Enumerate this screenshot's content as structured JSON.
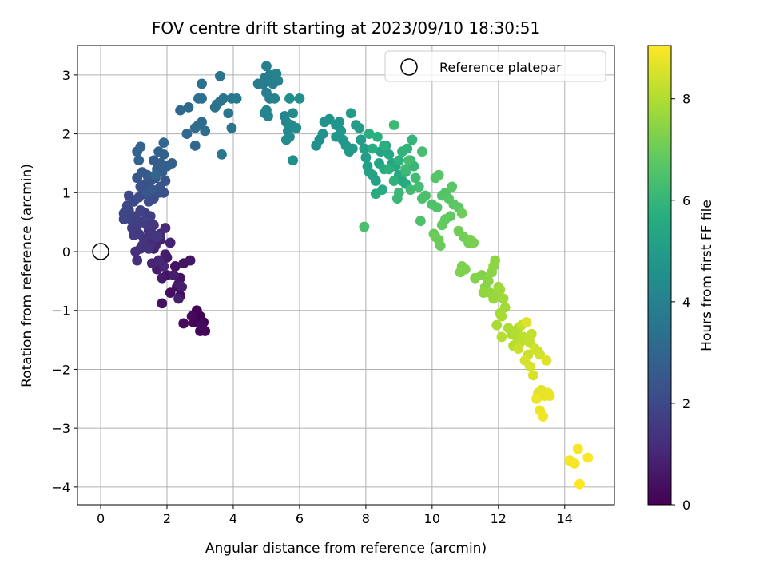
{
  "chart_data": {
    "type": "scatter",
    "title": "FOV centre drift starting at 2023/09/10 18:30:51",
    "xlabel": "Angular distance from reference (arcmin)",
    "ylabel": "Rotation from reference (arcmin)",
    "xlim": [
      -0.7,
      15.5
    ],
    "ylim": [
      -4.3,
      3.5
    ],
    "xticks": [
      0,
      2,
      4,
      6,
      8,
      10,
      12,
      14
    ],
    "yticks": [
      -4,
      -3,
      -2,
      -1,
      0,
      1,
      2,
      3
    ],
    "xtick_labels": [
      "0",
      "2",
      "4",
      "6",
      "8",
      "10",
      "12",
      "14"
    ],
    "ytick_labels": [
      "−4",
      "−3",
      "−2",
      "−1",
      "0",
      "1",
      "2",
      "3"
    ],
    "grid": true,
    "legend": {
      "placement": "upper-right",
      "entries": [
        "Reference platepar"
      ]
    },
    "reference_point": {
      "x": 0,
      "y": 0,
      "name": "Reference platepar"
    },
    "colorbar": {
      "label": "Hours from first FF file",
      "colormap": "viridis",
      "range": [
        0,
        9.05
      ],
      "ticks": [
        0,
        2,
        4,
        6,
        8
      ],
      "tick_labels": [
        "0",
        "2",
        "4",
        "6",
        "8"
      ]
    },
    "series": [
      {
        "points": [
          [
            2.9,
            -1.0
          ],
          [
            3.0,
            -1.1
          ],
          [
            3.1,
            -1.2
          ],
          [
            2.8,
            -1.2
          ],
          [
            3.0,
            -1.35
          ],
          [
            3.15,
            -1.35
          ],
          [
            2.75,
            -1.1
          ],
          [
            2.5,
            -1.22
          ],
          [
            3.05,
            -1.25
          ],
          [
            2.4,
            -0.75
          ],
          [
            2.3,
            -0.6
          ],
          [
            2.1,
            -0.7
          ],
          [
            1.85,
            -0.88
          ],
          [
            2.4,
            -0.45
          ],
          [
            2.0,
            -0.4
          ],
          [
            2.25,
            -0.25
          ],
          [
            2.5,
            -0.2
          ],
          [
            2.7,
            -0.15
          ],
          [
            2.0,
            -0.1
          ],
          [
            2.35,
            -0.55
          ],
          [
            1.85,
            -0.45
          ],
          [
            1.7,
            -0.3
          ],
          [
            1.95,
            -0.05
          ],
          [
            2.2,
            -0.4
          ],
          [
            2.45,
            -0.6
          ],
          [
            2.35,
            -0.8
          ],
          [
            1.6,
            0.05
          ],
          [
            1.8,
            0.2
          ],
          [
            2.1,
            0.15
          ],
          [
            1.55,
            -0.2
          ],
          [
            1.75,
            -0.15
          ],
          [
            1.9,
            -0.25
          ],
          [
            1.65,
            0.1
          ],
          [
            1.95,
            0.4
          ],
          [
            1.8,
            0.3
          ],
          [
            1.45,
            0.35
          ],
          [
            1.35,
            0.2
          ],
          [
            1.5,
            0.15
          ],
          [
            1.1,
            -0.15
          ],
          [
            1.05,
            0.0
          ],
          [
            1.2,
            0.05
          ],
          [
            1.25,
            0.1
          ],
          [
            1.3,
            0.22
          ],
          [
            1.45,
            0.05
          ],
          [
            1.55,
            0.3
          ],
          [
            1.6,
            0.45
          ],
          [
            1.7,
            0.25
          ],
          [
            1.4,
            0.45
          ],
          [
            1.15,
            0.3
          ],
          [
            1.0,
            0.28
          ],
          [
            0.95,
            0.4
          ],
          [
            1.1,
            0.45
          ],
          [
            1.25,
            0.5
          ],
          [
            1.5,
            0.6
          ],
          [
            1.35,
            0.65
          ],
          [
            1.2,
            0.7
          ],
          [
            1.05,
            0.6
          ],
          [
            0.9,
            0.55
          ],
          [
            0.85,
            0.7
          ],
          [
            0.7,
            0.55
          ],
          [
            0.7,
            0.65
          ],
          [
            0.8,
            0.78
          ],
          [
            0.85,
            0.95
          ],
          [
            1.0,
            0.85
          ],
          [
            1.15,
            0.92
          ],
          [
            1.3,
            0.98
          ],
          [
            1.45,
            0.85
          ],
          [
            1.6,
            0.9
          ],
          [
            1.75,
            1.0
          ],
          [
            1.9,
            1.0
          ],
          [
            1.2,
            1.1
          ],
          [
            1.35,
            1.15
          ],
          [
            1.5,
            1.2
          ],
          [
            1.65,
            1.25
          ],
          [
            1.8,
            1.1
          ],
          [
            1.95,
            1.2
          ],
          [
            1.1,
            1.25
          ],
          [
            1.4,
            1.0
          ],
          [
            1.55,
            1.05
          ],
          [
            1.25,
            1.35
          ],
          [
            1.4,
            1.3
          ],
          [
            1.7,
            1.4
          ],
          [
            1.85,
            1.35
          ],
          [
            1.6,
            1.55
          ],
          [
            1.8,
            1.5
          ],
          [
            2.0,
            1.45
          ],
          [
            2.15,
            1.5
          ],
          [
            1.9,
            1.65
          ],
          [
            1.75,
            1.7
          ],
          [
            1.15,
            1.55
          ],
          [
            1.1,
            1.7
          ],
          [
            1.2,
            1.78
          ],
          [
            1.65,
            1.3
          ],
          [
            1.9,
            1.85
          ],
          [
            2.4,
            2.4
          ],
          [
            2.6,
            2.0
          ],
          [
            2.85,
            1.8
          ],
          [
            2.65,
            2.45
          ],
          [
            2.95,
            2.15
          ],
          [
            2.85,
            2.1
          ],
          [
            3.05,
            2.2
          ],
          [
            3.15,
            2.05
          ],
          [
            2.95,
            2.6
          ],
          [
            3.05,
            2.6
          ],
          [
            3.05,
            2.85
          ],
          [
            3.45,
            2.45
          ],
          [
            3.5,
            2.5
          ],
          [
            3.6,
            2.55
          ],
          [
            3.7,
            2.6
          ],
          [
            3.6,
            2.98
          ],
          [
            3.95,
            2.1
          ],
          [
            3.85,
            2.35
          ],
          [
            3.65,
            1.65
          ],
          [
            3.95,
            2.6
          ],
          [
            4.1,
            2.6
          ],
          [
            4.75,
            2.85
          ],
          [
            4.9,
            2.85
          ],
          [
            4.95,
            2.95
          ],
          [
            5.0,
            2.7
          ],
          [
            5.1,
            2.6
          ],
          [
            5.2,
            2.85
          ],
          [
            5.1,
            3.0
          ],
          [
            5.0,
            3.15
          ],
          [
            5.35,
            2.9
          ],
          [
            5.3,
            3.02
          ],
          [
            5.25,
            2.6
          ],
          [
            5.0,
            2.4
          ],
          [
            4.95,
            2.35
          ],
          [
            5.05,
            2.3
          ],
          [
            5.55,
            2.3
          ],
          [
            5.6,
            2.2
          ],
          [
            5.65,
            2.05
          ],
          [
            5.7,
            1.95
          ],
          [
            5.6,
            1.9
          ],
          [
            5.75,
            2.15
          ],
          [
            5.9,
            2.1
          ],
          [
            5.8,
            2.35
          ],
          [
            5.7,
            2.6
          ],
          [
            6.0,
            2.6
          ],
          [
            5.8,
            1.55
          ],
          [
            6.5,
            1.8
          ],
          [
            6.6,
            1.9
          ],
          [
            6.7,
            2.0
          ],
          [
            6.75,
            2.2
          ],
          [
            6.9,
            2.25
          ],
          [
            7.1,
            2.15
          ],
          [
            7.2,
            2.2
          ],
          [
            7.25,
            2.05
          ],
          [
            7.1,
            1.95
          ],
          [
            7.3,
            1.9
          ],
          [
            7.4,
            1.8
          ],
          [
            7.5,
            1.7
          ],
          [
            7.6,
            1.75
          ],
          [
            7.55,
            2.35
          ],
          [
            7.7,
            2.15
          ],
          [
            7.8,
            2.1
          ],
          [
            7.85,
            1.9
          ],
          [
            7.95,
            1.75
          ],
          [
            8.0,
            1.6
          ],
          [
            8.05,
            1.45
          ],
          [
            8.1,
            1.35
          ],
          [
            8.2,
            1.3
          ],
          [
            8.3,
            1.2
          ],
          [
            8.4,
            1.5
          ],
          [
            8.45,
            1.7
          ],
          [
            8.6,
            1.8
          ],
          [
            8.7,
            1.65
          ],
          [
            8.8,
            1.5
          ],
          [
            8.9,
            1.45
          ],
          [
            9.0,
            1.3
          ],
          [
            9.1,
            1.2
          ],
          [
            9.2,
            1.15
          ],
          [
            8.5,
            1.05
          ],
          [
            8.55,
            1.4
          ],
          [
            8.3,
            0.98
          ],
          [
            8.2,
            1.75
          ],
          [
            8.1,
            2.0
          ],
          [
            8.35,
            1.95
          ],
          [
            8.55,
            1.8
          ],
          [
            8.7,
            1.4
          ],
          [
            8.85,
            1.2
          ],
          [
            9.0,
            1.55
          ],
          [
            9.1,
            1.7
          ],
          [
            9.25,
            1.75
          ],
          [
            9.4,
            1.9
          ],
          [
            9.35,
            1.55
          ],
          [
            9.45,
            1.45
          ],
          [
            9.2,
            1.35
          ],
          [
            9.0,
            1.0
          ],
          [
            8.95,
            0.9
          ],
          [
            8.85,
            2.15
          ],
          [
            9.2,
            1.4
          ],
          [
            9.35,
            1.05
          ],
          [
            9.5,
            1.25
          ],
          [
            9.6,
            1.1
          ],
          [
            9.3,
            1.55
          ],
          [
            9.7,
            1.7
          ],
          [
            7.95,
            0.42
          ],
          [
            9.7,
            0.9
          ],
          [
            9.8,
            0.95
          ],
          [
            9.65,
            0.52
          ],
          [
            10.0,
            0.8
          ],
          [
            10.15,
            0.75
          ],
          [
            10.3,
            0.95
          ],
          [
            10.4,
            1.0
          ],
          [
            10.1,
            1.25
          ],
          [
            10.2,
            1.3
          ],
          [
            10.5,
            0.9
          ],
          [
            10.6,
            1.1
          ],
          [
            10.65,
            0.8
          ],
          [
            10.8,
            0.75
          ],
          [
            10.55,
            0.6
          ],
          [
            10.4,
            0.55
          ],
          [
            10.3,
            0.45
          ],
          [
            10.05,
            0.3
          ],
          [
            10.2,
            0.2
          ],
          [
            10.25,
            0.1
          ],
          [
            10.1,
            0.25
          ],
          [
            10.9,
            0.65
          ],
          [
            10.8,
            0.35
          ],
          [
            10.95,
            0.25
          ],
          [
            11.1,
            0.15
          ],
          [
            11.15,
            0.2
          ],
          [
            11.25,
            0.15
          ],
          [
            10.9,
            -0.25
          ],
          [
            11.0,
            -0.3
          ],
          [
            10.85,
            -0.35
          ],
          [
            11.3,
            -0.45
          ],
          [
            11.5,
            -0.4
          ],
          [
            11.6,
            -0.6
          ],
          [
            11.7,
            -0.5
          ],
          [
            11.8,
            -0.35
          ],
          [
            11.85,
            -0.25
          ],
          [
            11.9,
            -0.15
          ],
          [
            11.55,
            -0.7
          ],
          [
            11.75,
            -0.7
          ],
          [
            11.85,
            -0.8
          ],
          [
            11.95,
            -0.75
          ],
          [
            12.0,
            -0.6
          ],
          [
            12.05,
            -0.65
          ],
          [
            12.15,
            -0.8
          ],
          [
            12.2,
            -0.95
          ],
          [
            12.05,
            -1.05
          ],
          [
            12.1,
            -1.1
          ],
          [
            11.95,
            -1.25
          ],
          [
            12.3,
            -1.3
          ],
          [
            12.4,
            -1.4
          ],
          [
            12.5,
            -1.35
          ],
          [
            12.55,
            -1.45
          ],
          [
            12.6,
            -1.3
          ],
          [
            12.1,
            -1.45
          ],
          [
            12.45,
            -1.6
          ],
          [
            12.65,
            -1.55
          ],
          [
            12.75,
            -1.45
          ],
          [
            12.85,
            -1.5
          ],
          [
            12.95,
            -1.55
          ],
          [
            13.0,
            -1.4
          ],
          [
            12.7,
            -1.25
          ],
          [
            12.6,
            -1.65
          ],
          [
            12.9,
            -1.75
          ],
          [
            13.1,
            -1.65
          ],
          [
            13.2,
            -1.7
          ],
          [
            13.25,
            -1.75
          ],
          [
            12.8,
            -1.85
          ],
          [
            12.95,
            -1.95
          ],
          [
            13.05,
            -2.1
          ],
          [
            12.85,
            -1.2
          ],
          [
            13.45,
            -1.85
          ],
          [
            13.2,
            -2.4
          ],
          [
            13.3,
            -2.35
          ],
          [
            13.4,
            -2.45
          ],
          [
            13.5,
            -2.4
          ],
          [
            13.55,
            -2.45
          ],
          [
            13.15,
            -2.5
          ],
          [
            13.25,
            -2.7
          ],
          [
            13.35,
            -2.8
          ],
          [
            14.15,
            -3.55
          ],
          [
            14.3,
            -3.6
          ],
          [
            14.4,
            -3.35
          ],
          [
            14.7,
            -3.5
          ],
          [
            14.45,
            -3.95
          ]
        ]
      }
    ]
  }
}
